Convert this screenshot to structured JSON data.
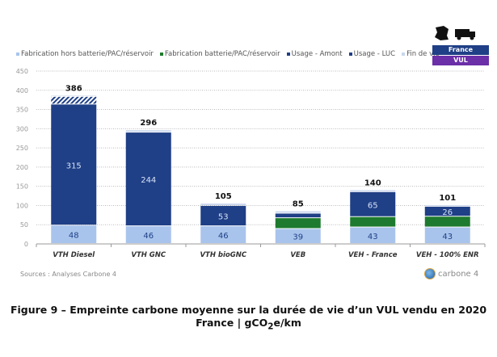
{
  "chart_data": {
    "type": "bar",
    "stacked": true,
    "categories": [
      "VTH Diesel",
      "VTH GNC",
      "VTH bioGNC",
      "VEB",
      "VEH - France",
      "VEH - 100% ENR"
    ],
    "series": [
      {
        "name": "Fabrication hors batterie/PAC/réservoir",
        "color": "#a9c4ec",
        "values": [
          48,
          46,
          46,
          39,
          43,
          43
        ],
        "labels": [
          "48",
          "46",
          "46",
          "39",
          "43",
          "43"
        ]
      },
      {
        "name": "Fabrication batterie/PAC/réservoir",
        "color": "#1e7a2e",
        "values": [
          0,
          0,
          0,
          28,
          27,
          28
        ],
        "labels": [
          null,
          null,
          null,
          null,
          null,
          null
        ]
      },
      {
        "name": "Usage - Amont",
        "color": "#1f3f86",
        "values": [
          315,
          244,
          53,
          12,
          65,
          26
        ],
        "labels": [
          "315",
          "244",
          "53",
          null,
          "65",
          "26"
        ]
      },
      {
        "name": "Usage - LUC",
        "color": "hatched",
        "values": [
          20,
          0,
          0,
          0,
          0,
          0
        ],
        "labels": [
          null,
          null,
          null,
          null,
          null,
          null
        ]
      },
      {
        "name": "Fin de vie",
        "color": "#c9d6ee",
        "values": [
          3,
          6,
          6,
          6,
          5,
          4
        ],
        "labels": [
          null,
          null,
          null,
          null,
          null,
          null
        ]
      }
    ],
    "totals": [
      "386",
      "296",
      "105",
      "85",
      "140",
      "101"
    ],
    "yticks": [
      "0",
      "50",
      "100",
      "150",
      "200",
      "250",
      "300",
      "350",
      "400",
      "450"
    ],
    "ylim": [
      0,
      450
    ],
    "grid": true,
    "legend": "top"
  },
  "badges": {
    "country": "France",
    "vehicle": "VUL",
    "country_color": "#1f3f86",
    "vehicle_color": "#6b2fa8"
  },
  "source": "Sources : Analyses Carbone 4",
  "logo": "carbone 4",
  "caption": {
    "line1": "Figure 9 – Empreinte carbone moyenne sur la durée de vie d’un VUL vendu en 2020",
    "line2_prefix": "France | gCO",
    "line2_sub": "2",
    "line2_suffix": "e/km"
  }
}
